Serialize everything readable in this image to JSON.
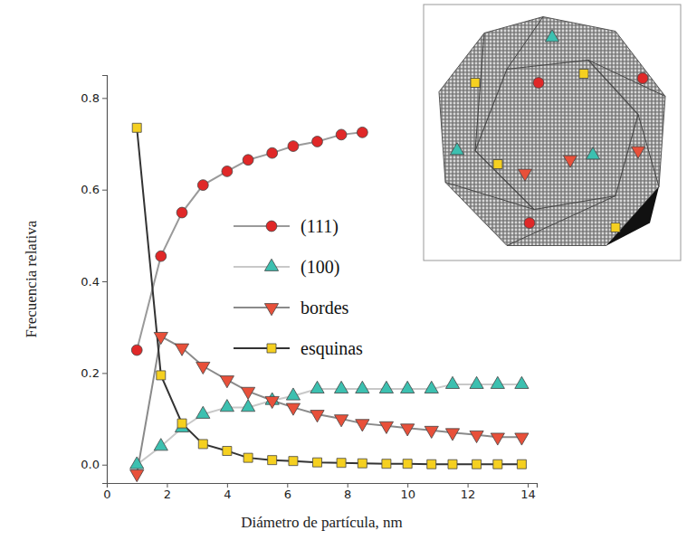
{
  "chart_data": {
    "type": "line",
    "x_label": "Diámetro de partícula, nm",
    "y_label": "Frecuencia relativa",
    "x": [
      1,
      1.8,
      2.5,
      3.2,
      4,
      4.7,
      5.5,
      6.2,
      7,
      7.8,
      8.5,
      9.3,
      10,
      10.8,
      11.5,
      12.3,
      13,
      13.8
    ],
    "series": [
      {
        "name": "(111)",
        "color": "#e02828",
        "marker": "circle",
        "line_style": "solid",
        "values": [
          0.25,
          0.455,
          0.55,
          0.61,
          0.64,
          0.665,
          0.68,
          0.695,
          0.705,
          0.72,
          0.725,
          null,
          null,
          null,
          null,
          null,
          null,
          null
        ]
      },
      {
        "name": "(100)",
        "color": "#3cc0b0",
        "marker": "triangle-up",
        "line_style": "solid",
        "values": [
          0.0,
          0.04,
          0.08,
          0.11,
          0.125,
          0.125,
          0.14,
          0.15,
          0.165,
          0.165,
          0.165,
          0.165,
          0.165,
          0.165,
          0.175,
          0.175,
          0.175,
          0.175
        ]
      },
      {
        "name": "bordes",
        "color": "#e8503a",
        "marker": "triangle-down",
        "line_style": "solid",
        "values": [
          -0.02,
          0.28,
          0.255,
          0.215,
          0.185,
          0.16,
          0.14,
          0.125,
          0.11,
          0.1,
          0.09,
          0.085,
          0.08,
          0.075,
          0.07,
          0.065,
          0.06,
          0.06
        ]
      },
      {
        "name": "esquinas",
        "color": "#f5d020",
        "marker": "square",
        "line_style": "solid",
        "values": [
          0.735,
          0.195,
          0.09,
          0.045,
          0.03,
          0.015,
          0.01,
          0.008,
          0.005,
          0.004,
          0.003,
          0.002,
          0.002,
          0.001,
          0.001,
          0.001,
          0.001,
          0.001
        ]
      }
    ],
    "xlim": [
      0,
      14.3
    ],
    "ylim": [
      -0.04,
      0.85
    ],
    "xticks": [
      0,
      2,
      4,
      6,
      8,
      10,
      12,
      14
    ],
    "yticks": [
      {
        "value": 0,
        "label": "0.0"
      },
      0.2,
      0.4,
      0.6,
      0.8
    ],
    "grid": false,
    "legend": "center"
  }
}
